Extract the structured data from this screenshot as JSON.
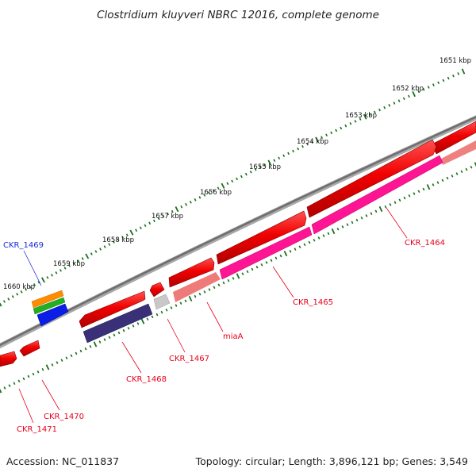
{
  "title": "Clostridium kluyveri NBRC 12016, complete genome",
  "footer": {
    "accession": "Accession: NC_011837",
    "summary": "Topology: circular; Length: 3,896,121 bp; Genes: 3,549"
  },
  "ruler": {
    "ticks": [
      "1651 kbp",
      "1652 kbp",
      "1653 kbp",
      "1654 kbp",
      "1655 kbp",
      "1656 kbp",
      "1657 kbp",
      "1658 kbp",
      "1659 kbp",
      "1660 kbp"
    ],
    "tick_color": "#1a6e1a"
  },
  "genes": [
    {
      "label": "CKR_1464",
      "color": "#e8001c"
    },
    {
      "label": "CKR_1465",
      "color": "#e8001c"
    },
    {
      "label": "miaA",
      "color": "#e8001c"
    },
    {
      "label": "CKR_1467",
      "color": "#e8001c"
    },
    {
      "label": "CKR_1468",
      "color": "#e8001c"
    },
    {
      "label": "CKR_1469",
      "color": "#1a2ad8"
    },
    {
      "label": "CKR_1470",
      "color": "#e8001c"
    },
    {
      "label": "CKR_1471",
      "color": "#e8001c"
    }
  ],
  "colors": {
    "backbone": "#7a7a7a",
    "cds_red": "#f00000",
    "feature_magenta": "#ff1493",
    "feature_pink": "#ee7a7a",
    "feature_navy": "#3a3078",
    "feature_gray": "#c8c8c8",
    "feature_blue": "#0a1ee8",
    "feature_orange": "#ff8c00",
    "feature_green": "#22b022"
  }
}
